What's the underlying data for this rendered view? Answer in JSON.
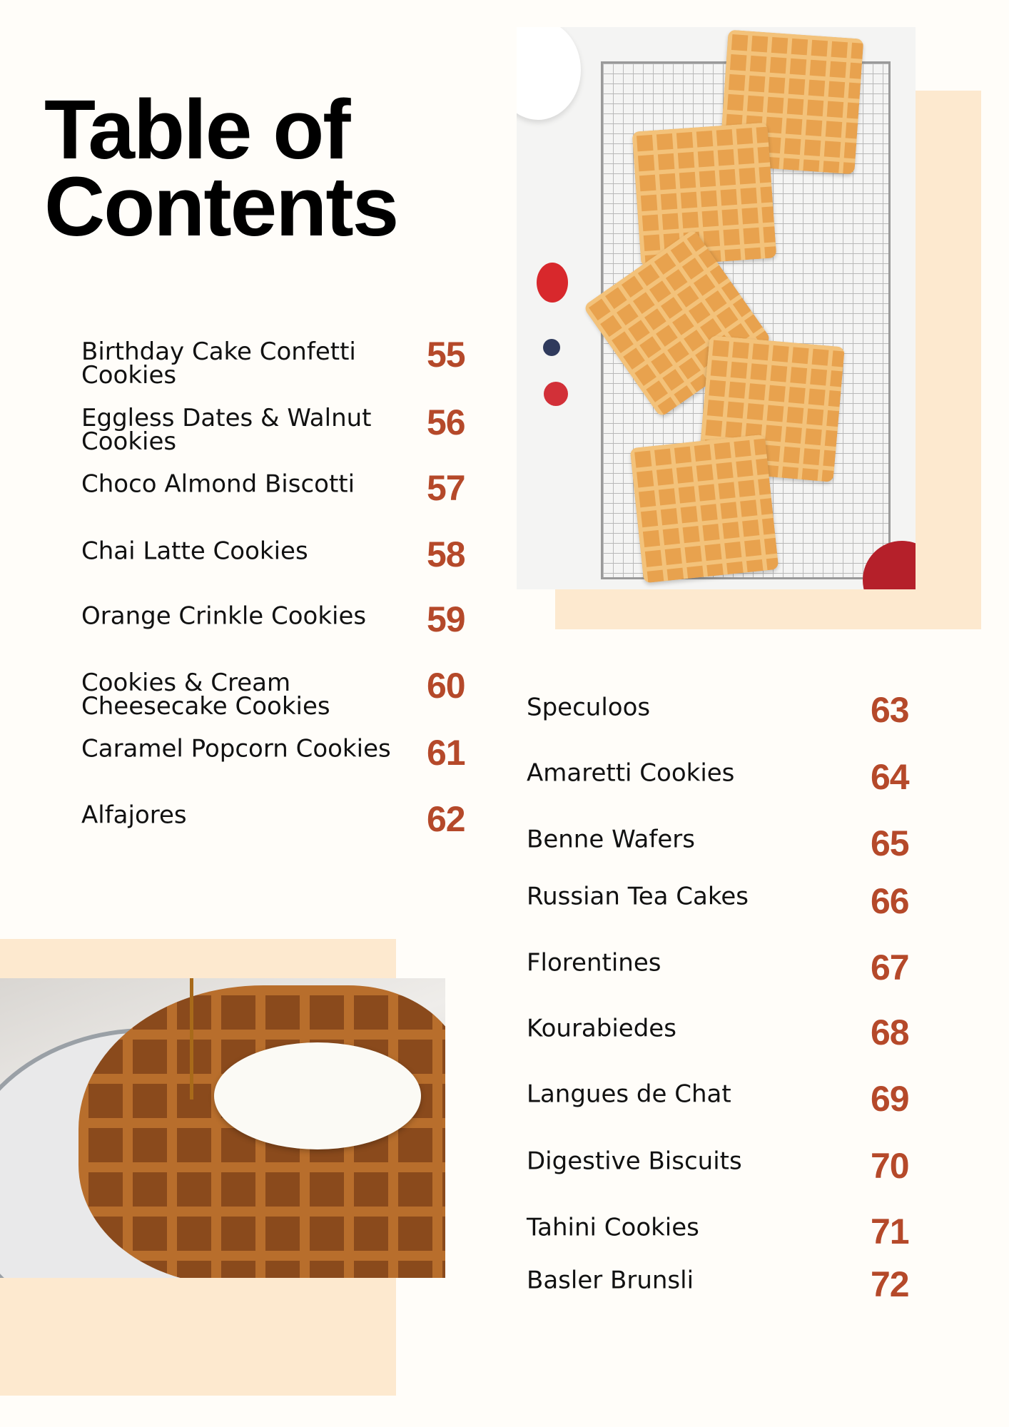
{
  "title": {
    "line1": "Table of",
    "line2": "Contents"
  },
  "colors": {
    "accent": "#b5492a",
    "peach": "#fde9cf",
    "background": "#fffdf9",
    "text": "#111111"
  },
  "left_entries": [
    {
      "title": "Birthday Cake Confetti Cookies",
      "page": "55"
    },
    {
      "title": "Eggless Dates & Walnut Cookies",
      "page": "56"
    },
    {
      "title": "Choco Almond Biscotti",
      "page": "57"
    },
    {
      "title": "Chai Latte Cookies",
      "page": "58"
    },
    {
      "title": "Orange Crinkle Cookies",
      "page": "59"
    },
    {
      "title": "Cookies & Cream Cheesecake Cookies",
      "page": "60"
    },
    {
      "title": "Caramel Popcorn Cookies",
      "page": "61"
    },
    {
      "title": "Alfajores",
      "page": "62"
    }
  ],
  "right_entries": [
    {
      "title": "Speculoos",
      "page": "63"
    },
    {
      "title": "Amaretti Cookies",
      "page": "64"
    },
    {
      "title": "Benne Wafers",
      "page": "65"
    },
    {
      "title": "Russian Tea Cakes",
      "page": "66"
    },
    {
      "title": "Florentines",
      "page": "67"
    },
    {
      "title": "Kourabiedes",
      "page": "68"
    },
    {
      "title": "Langues de Chat",
      "page": "69"
    },
    {
      "title": "Digestive Biscuits",
      "page": "70"
    },
    {
      "title": "Tahini Cookies",
      "page": "71"
    },
    {
      "title": "Basler Brunsli",
      "page": "72"
    }
  ]
}
